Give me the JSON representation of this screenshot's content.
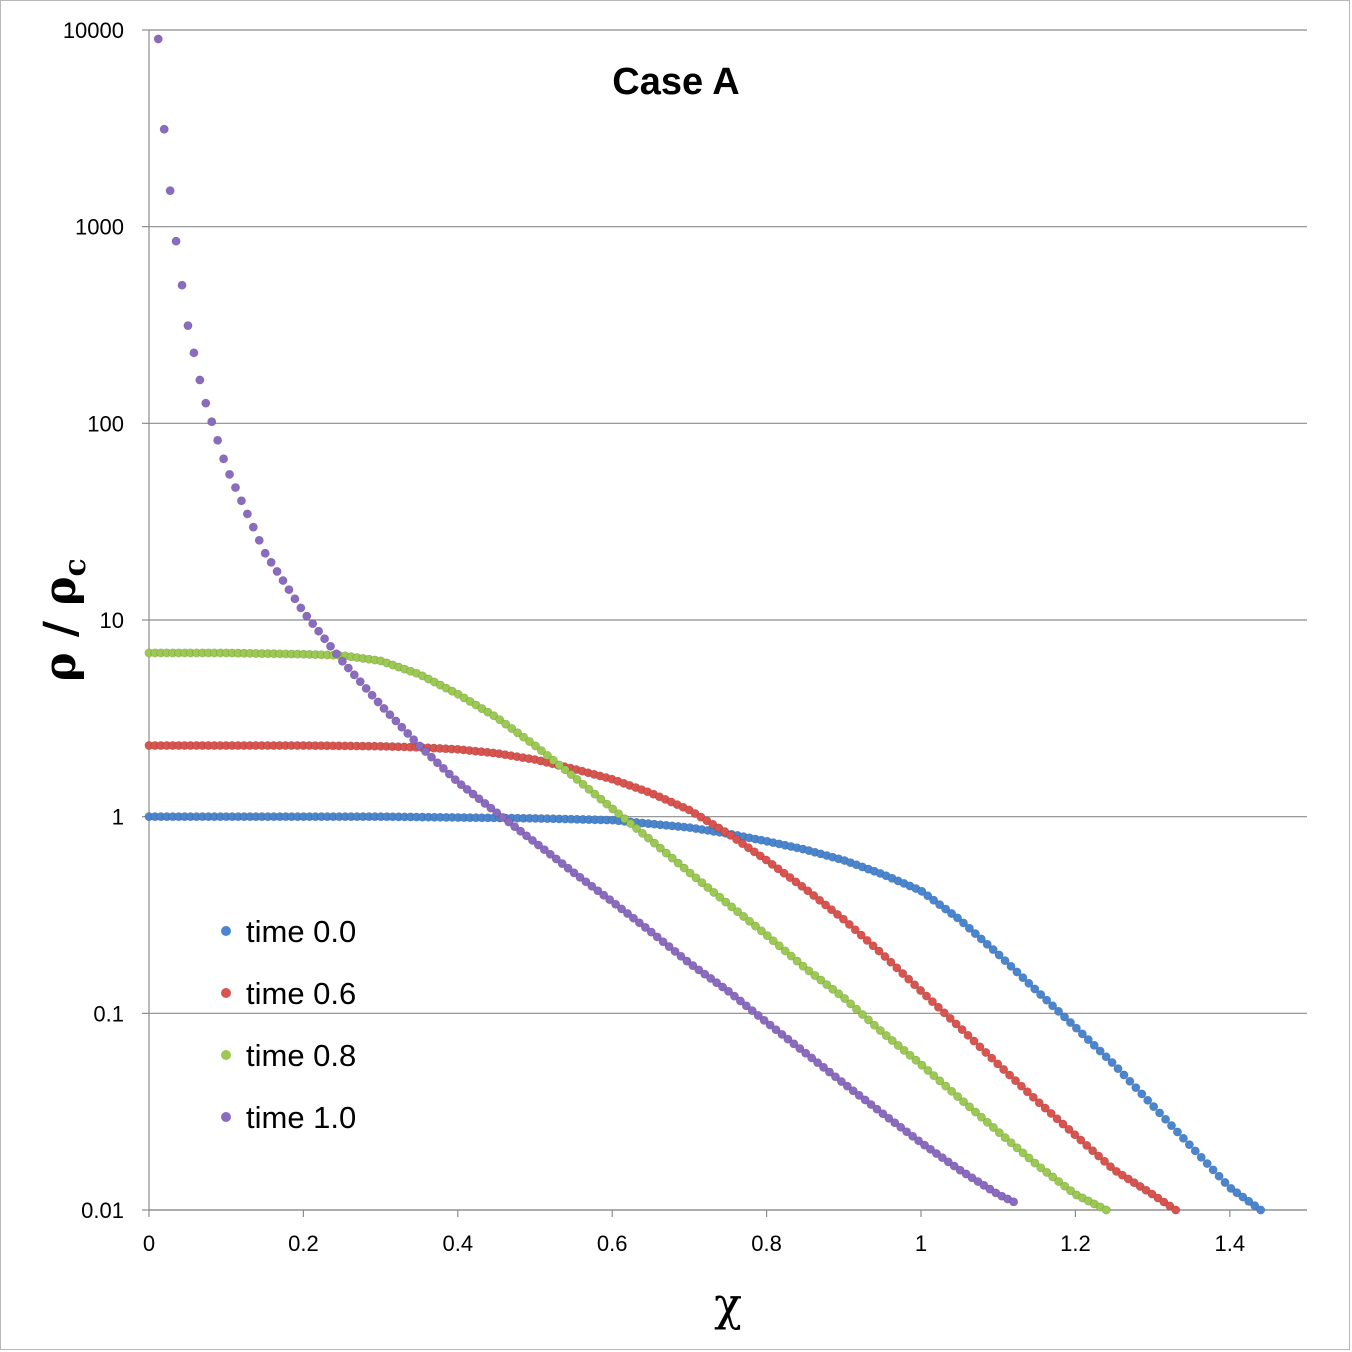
{
  "chart_data": {
    "type": "scatter",
    "title": "Case A",
    "xlabel": "χ",
    "ylabel": {
      "main": "ρ / ρ",
      "subscript": "c"
    },
    "xlim": [
      0,
      1.5
    ],
    "ylim": [
      0.01,
      10000
    ],
    "yscale": "log",
    "x_ticks": [
      "0",
      "0.2",
      "0.4",
      "0.6",
      "0.8",
      "1",
      "1.2",
      "1.4"
    ],
    "y_ticks": [
      "0.01",
      "0.1",
      "1",
      "10",
      "100",
      "1000",
      "10000"
    ],
    "grid": "horizontal",
    "legend_position": "lower-left",
    "series": [
      {
        "name": "time 0.0",
        "color": "#4a86cf",
        "points": [
          [
            0,
            1.0
          ],
          [
            0.1,
            1.0
          ],
          [
            0.2,
            1.0
          ],
          [
            0.3,
            1.0
          ],
          [
            0.4,
            0.99
          ],
          [
            0.5,
            0.98
          ],
          [
            0.6,
            0.96
          ],
          [
            0.7,
            0.88
          ],
          [
            0.75,
            0.82
          ],
          [
            0.8,
            0.75
          ],
          [
            0.85,
            0.68
          ],
          [
            0.9,
            0.6
          ],
          [
            0.95,
            0.51
          ],
          [
            1.0,
            0.42
          ],
          [
            1.05,
            0.3
          ],
          [
            1.1,
            0.2
          ],
          [
            1.15,
            0.13
          ],
          [
            1.2,
            0.085
          ],
          [
            1.25,
            0.055
          ],
          [
            1.3,
            0.034
          ],
          [
            1.35,
            0.021
          ],
          [
            1.4,
            0.013
          ],
          [
            1.44,
            0.01
          ]
        ]
      },
      {
        "name": "time 0.6",
        "color": "#d9534f",
        "points": [
          [
            0,
            2.3
          ],
          [
            0.1,
            2.3
          ],
          [
            0.2,
            2.3
          ],
          [
            0.3,
            2.28
          ],
          [
            0.35,
            2.25
          ],
          [
            0.4,
            2.2
          ],
          [
            0.45,
            2.1
          ],
          [
            0.5,
            1.95
          ],
          [
            0.55,
            1.75
          ],
          [
            0.6,
            1.55
          ],
          [
            0.65,
            1.32
          ],
          [
            0.7,
            1.08
          ],
          [
            0.75,
            0.82
          ],
          [
            0.8,
            0.6
          ],
          [
            0.85,
            0.43
          ],
          [
            0.9,
            0.3
          ],
          [
            0.95,
            0.2
          ],
          [
            1.0,
            0.13
          ],
          [
            1.05,
            0.085
          ],
          [
            1.1,
            0.055
          ],
          [
            1.15,
            0.036
          ],
          [
            1.2,
            0.024
          ],
          [
            1.25,
            0.016
          ],
          [
            1.3,
            0.012
          ],
          [
            1.33,
            0.01
          ]
        ]
      },
      {
        "name": "time 0.8",
        "color": "#9bc952",
        "points": [
          [
            0,
            6.8
          ],
          [
            0.1,
            6.8
          ],
          [
            0.2,
            6.7
          ],
          [
            0.25,
            6.6
          ],
          [
            0.3,
            6.2
          ],
          [
            0.35,
            5.3
          ],
          [
            0.4,
            4.2
          ],
          [
            0.45,
            3.2
          ],
          [
            0.5,
            2.3
          ],
          [
            0.55,
            1.6
          ],
          [
            0.6,
            1.1
          ],
          [
            0.65,
            0.76
          ],
          [
            0.7,
            0.52
          ],
          [
            0.75,
            0.36
          ],
          [
            0.8,
            0.25
          ],
          [
            0.85,
            0.17
          ],
          [
            0.9,
            0.12
          ],
          [
            0.95,
            0.08
          ],
          [
            1.0,
            0.055
          ],
          [
            1.05,
            0.037
          ],
          [
            1.1,
            0.025
          ],
          [
            1.15,
            0.017
          ],
          [
            1.2,
            0.012
          ],
          [
            1.24,
            0.01
          ]
        ]
      },
      {
        "name": "time 1.0",
        "color": "#8a6bbf",
        "points": [
          [
            0.012,
            9000
          ],
          [
            0.02,
            3000
          ],
          [
            0.03,
            1200
          ],
          [
            0.04,
            600
          ],
          [
            0.05,
            320
          ],
          [
            0.07,
            140
          ],
          [
            0.1,
            60
          ],
          [
            0.15,
            22
          ],
          [
            0.2,
            11
          ],
          [
            0.25,
            6.2
          ],
          [
            0.3,
            3.7
          ],
          [
            0.35,
            2.3
          ],
          [
            0.4,
            1.5
          ],
          [
            0.45,
            1.05
          ],
          [
            0.5,
            0.74
          ],
          [
            0.55,
            0.52
          ],
          [
            0.6,
            0.37
          ],
          [
            0.65,
            0.26
          ],
          [
            0.7,
            0.18
          ],
          [
            0.75,
            0.13
          ],
          [
            0.8,
            0.09
          ],
          [
            0.85,
            0.063
          ],
          [
            0.9,
            0.044
          ],
          [
            0.95,
            0.031
          ],
          [
            1.0,
            0.022
          ],
          [
            1.05,
            0.016
          ],
          [
            1.1,
            0.012
          ],
          [
            1.12,
            0.011
          ]
        ]
      }
    ]
  }
}
